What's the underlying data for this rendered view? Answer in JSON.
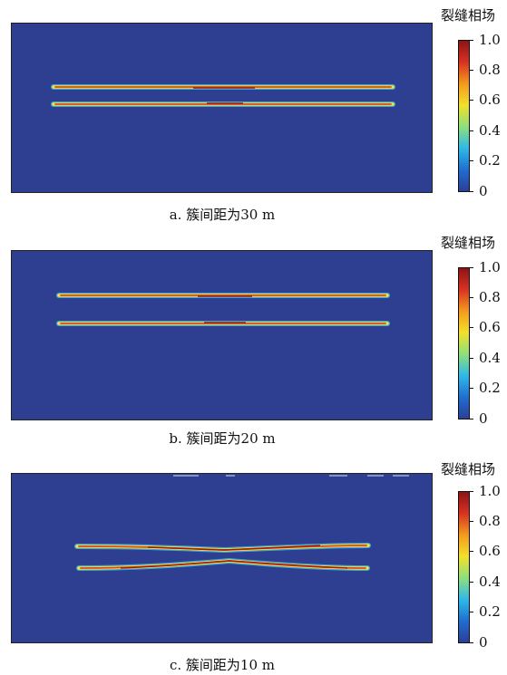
{
  "colorbar": {
    "title": "裂缝相场",
    "ticks": [
      "1.0",
      "0.8",
      "0.6",
      "0.4",
      "0.2",
      "0"
    ],
    "colormap": [
      "#2b3f98",
      "#1f6fd0",
      "#2fb9e8",
      "#8fe07a",
      "#f3e02b",
      "#f39a1e",
      "#d83222",
      "#8e1316"
    ],
    "background_color": "#2e3f91"
  },
  "panels": [
    {
      "id": "a",
      "caption": "a. 簇间距为30 m",
      "cluster_spacing_m": 30
    },
    {
      "id": "b",
      "caption": "b. 簇间距为20 m",
      "cluster_spacing_m": 20
    },
    {
      "id": "c",
      "caption": "c. 簇间距为10 m",
      "cluster_spacing_m": 10
    }
  ]
}
